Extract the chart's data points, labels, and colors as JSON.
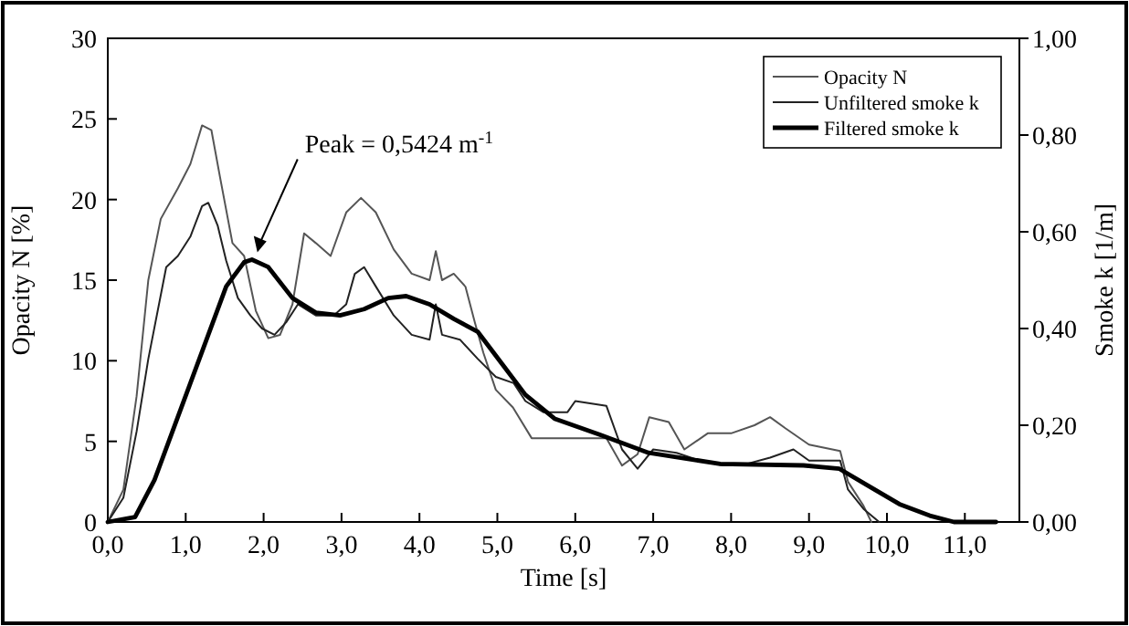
{
  "chart_data": {
    "type": "line",
    "xlabel": "Time [s]",
    "ylabel": "Opacity N [%]",
    "y2label": "Smoke k [1/m]",
    "xlim": [
      0,
      11.7
    ],
    "xticks": [
      {
        "value": 0,
        "label": "0,0"
      },
      {
        "value": 1,
        "label": "1,0"
      },
      {
        "value": 2,
        "label": "2,0"
      },
      {
        "value": 3,
        "label": "3,0"
      },
      {
        "value": 4,
        "label": "4,0"
      },
      {
        "value": 5,
        "label": "5,0"
      },
      {
        "value": 6,
        "label": "6,0"
      },
      {
        "value": 7,
        "label": "7,0"
      },
      {
        "value": 8,
        "label": "8,0"
      },
      {
        "value": 9,
        "label": "9,0"
      },
      {
        "value": 10,
        "label": "10,0"
      },
      {
        "value": 11,
        "label": "11,0"
      }
    ],
    "ylim": [
      0,
      30
    ],
    "yticks": [
      0,
      5,
      10,
      15,
      20,
      25,
      30
    ],
    "y2lim": [
      0,
      1
    ],
    "y2ticks": [
      {
        "value": 0,
        "label": "0,00"
      },
      {
        "value": 0.2,
        "label": "0,20"
      },
      {
        "value": 0.4,
        "label": "0,40"
      },
      {
        "value": 0.6,
        "label": "0,60"
      },
      {
        "value": 0.8,
        "label": "0,80"
      },
      {
        "value": 1,
        "label": "1,00"
      }
    ],
    "grid": false,
    "legend": "top right",
    "marker": "none",
    "annotations": [
      "Peak = 0,5424 m$^{-1}$"
    ],
    "series": [
      {
        "name": "Opacity N",
        "color": "#555555",
        "line_style": "solid",
        "x": [
          0,
          0.2,
          0.37,
          0.52,
          0.68,
          0.9,
          1.06,
          1.21,
          1.33,
          1.44,
          1.6,
          1.75,
          1.9,
          2.06,
          2.21,
          2.37,
          2.52,
          2.67,
          2.86,
          3.06,
          3.25,
          3.44,
          3.67,
          3.9,
          4.13,
          4.21,
          4.29,
          4.44,
          4.59,
          4.71,
          4.82,
          4.98,
          5.2,
          5.44,
          5.74,
          6.0,
          6.4,
          6.6,
          6.8,
          6.95,
          7.2,
          7.4,
          7.7,
          8.0,
          8.3,
          8.5,
          8.7,
          9.0,
          9.4,
          9.5,
          9.7,
          9.8
        ],
        "values": [
          0,
          2,
          7.8,
          15,
          18.8,
          20.7,
          22.2,
          24.6,
          24.3,
          21.4,
          17.3,
          16.5,
          13.1,
          11.4,
          11.6,
          13.5,
          17.9,
          17.3,
          16.5,
          19.2,
          20.1,
          19.2,
          16.9,
          15.4,
          15,
          16.8,
          15,
          15.4,
          14.6,
          12.4,
          10.5,
          8.2,
          7.1,
          5.2,
          5.2,
          5.2,
          5.2,
          3.5,
          4.2,
          6.5,
          6.2,
          4.5,
          5.5,
          5.5,
          6,
          6.5,
          5.8,
          4.8,
          4.4,
          2.5,
          1,
          0
        ]
      },
      {
        "name": "Unfiltered smoke k",
        "color": "#222222",
        "axis": "y2",
        "line_style": "solid",
        "x": [
          0,
          0.2,
          0.37,
          0.52,
          0.75,
          0.9,
          1.06,
          1.21,
          1.29,
          1.41,
          1.52,
          1.67,
          1.83,
          1.98,
          2.14,
          2.29,
          2.44,
          2.67,
          2.9,
          3.06,
          3.17,
          3.29,
          3.44,
          3.67,
          3.9,
          4.13,
          4.21,
          4.29,
          4.52,
          4.75,
          4.98,
          5.21,
          5.36,
          5.59,
          5.9,
          6.0,
          6.4,
          6.6,
          6.8,
          7.0,
          7.3,
          7.6,
          7.9,
          8.2,
          8.5,
          8.8,
          9.0,
          9.4,
          9.5,
          9.7,
          9.9
        ],
        "values": [
          0,
          0.05,
          0.187,
          0.337,
          0.527,
          0.55,
          0.59,
          0.653,
          0.66,
          0.613,
          0.54,
          0.463,
          0.427,
          0.4,
          0.387,
          0.413,
          0.45,
          0.427,
          0.427,
          0.45,
          0.513,
          0.527,
          0.487,
          0.427,
          0.387,
          0.377,
          0.45,
          0.387,
          0.377,
          0.337,
          0.3,
          0.287,
          0.25,
          0.227,
          0.227,
          0.25,
          0.24,
          0.15,
          0.11,
          0.15,
          0.143,
          0.127,
          0.117,
          0.12,
          0.133,
          0.15,
          0.127,
          0.127,
          0.067,
          0.027,
          0
        ]
      },
      {
        "name": "Filtered smoke k",
        "color": "#000000",
        "axis": "y2",
        "line_style": "solid",
        "x": [
          0,
          0.35,
          0.6,
          0.83,
          1.06,
          1.29,
          1.52,
          1.75,
          1.85,
          2.06,
          2.37,
          2.67,
          2.98,
          3.29,
          3.6,
          3.83,
          4.13,
          4.44,
          4.75,
          5.06,
          5.36,
          5.74,
          6.32,
          6.94,
          7.86,
          8.93,
          9.39,
          9.78,
          10.16,
          10.55,
          10.86,
          11.4
        ],
        "values": [
          0,
          0.01,
          0.087,
          0.187,
          0.287,
          0.387,
          0.487,
          0.537,
          0.5424,
          0.527,
          0.463,
          0.433,
          0.427,
          0.44,
          0.463,
          0.467,
          0.45,
          0.42,
          0.393,
          0.327,
          0.263,
          0.213,
          0.18,
          0.143,
          0.12,
          0.117,
          0.11,
          0.073,
          0.037,
          0.013,
          0,
          0
        ]
      }
    ]
  }
}
